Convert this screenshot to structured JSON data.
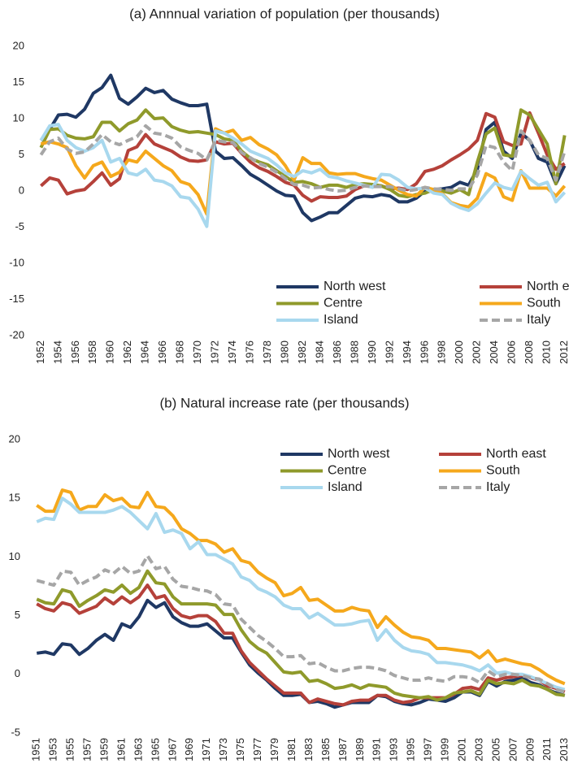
{
  "chart_data": [
    {
      "type": "line",
      "title": "(a) Annnual variation of population (per thousands)",
      "x": [
        1952,
        1953,
        1954,
        1955,
        1956,
        1957,
        1958,
        1959,
        1960,
        1961,
        1962,
        1963,
        1964,
        1965,
        1966,
        1967,
        1968,
        1969,
        1970,
        1971,
        1972,
        1973,
        1974,
        1975,
        1976,
        1977,
        1978,
        1979,
        1980,
        1981,
        1982,
        1983,
        1984,
        1985,
        1986,
        1987,
        1988,
        1989,
        1990,
        1991,
        1992,
        1993,
        1994,
        1995,
        1996,
        1997,
        1998,
        1999,
        2000,
        2001,
        2002,
        2003,
        2004,
        2005,
        2006,
        2007,
        2008,
        2009,
        2010,
        2011,
        2012
      ],
      "xlim": [
        1951.5,
        2012.5
      ],
      "xticks": [
        1952,
        1954,
        1956,
        1958,
        1960,
        1962,
        1964,
        1966,
        1968,
        1970,
        1972,
        1974,
        1976,
        1978,
        1980,
        1982,
        1984,
        1986,
        1988,
        1990,
        1992,
        1994,
        1996,
        1998,
        2000,
        2002,
        2004,
        2006,
        2008,
        2010,
        2012
      ],
      "ylim": [
        -20,
        20
      ],
      "yticks": [
        -20,
        -15,
        -10,
        -5,
        0,
        5,
        10,
        15,
        20
      ],
      "grid": false,
      "legend": "bottom-right",
      "series": [
        {
          "name": "North west",
          "color": "#1f3864",
          "line_style": "solid",
          "values": [
            7,
            8.5,
            10.5,
            10.6,
            10.2,
            11.3,
            13.5,
            14.3,
            16,
            12.8,
            12,
            13,
            14.2,
            13.6,
            13.9,
            12.7,
            12.2,
            11.8,
            11.8,
            12,
            5.5,
            4.5,
            4.6,
            3.5,
            2.3,
            1.6,
            0.8,
            0,
            -0.6,
            -0.7,
            -3,
            -4.1,
            -3.6,
            -3,
            -3,
            -2,
            -1,
            -0.7,
            -0.8,
            -0.5,
            -0.7,
            -1.5,
            -1.5,
            -1,
            0,
            0.2,
            0.3,
            0.5,
            1.2,
            0.8,
            3,
            8.5,
            9.5,
            5.5,
            4.5,
            8,
            7,
            4.5,
            4,
            1,
            3.5
          ]
        },
        {
          "name": "North east",
          "color": "#b5413a",
          "line_style": "solid",
          "values": [
            0.7,
            1.8,
            1.5,
            -0.4,
            0,
            0.2,
            1.3,
            2.5,
            0.8,
            1.7,
            5.6,
            6.1,
            7.8,
            6.5,
            6,
            5.5,
            4.7,
            4.2,
            4.1,
            4.3,
            6.8,
            6.5,
            6.6,
            5.2,
            4,
            3.2,
            2.7,
            2,
            1.2,
            0.8,
            -0.6,
            -1.4,
            -0.8,
            -0.9,
            -0.9,
            -0.7,
            0.2,
            0.7,
            0.8,
            0.7,
            0.3,
            0.4,
            0.2,
            1,
            2.7,
            3,
            3.5,
            4.3,
            5,
            5.8,
            7,
            10.7,
            10.2,
            6.8,
            6.3,
            6.5,
            10.8,
            8,
            5,
            3,
            3.8
          ]
        },
        {
          "name": "Centre",
          "color": "#8f9a2b",
          "line_style": "solid",
          "values": [
            6,
            8.5,
            8.6,
            7.7,
            7.3,
            7.2,
            7.5,
            9.5,
            9.5,
            8.3,
            9.3,
            9.8,
            11.2,
            10,
            10.1,
            8.9,
            8.4,
            8.1,
            8.2,
            8,
            7.8,
            7.2,
            7,
            5.5,
            4.5,
            4,
            3.6,
            2.8,
            2,
            1.2,
            1.3,
            1,
            0.5,
            0.8,
            0.8,
            0.5,
            0.9,
            1,
            0.9,
            0.7,
            0.2,
            -0.6,
            -0.8,
            -0.5,
            -0.3,
            0.2,
            0,
            -0.3,
            0.2,
            -0.5,
            4,
            7.9,
            8.7,
            5,
            4.8,
            11.2,
            10.5,
            8.5,
            6.5,
            1,
            7.7
          ]
        },
        {
          "name": "South",
          "color": "#f5a81c",
          "line_style": "solid",
          "values": [
            6.5,
            6.8,
            6.5,
            6,
            3.5,
            1.8,
            3.5,
            4,
            2,
            2.6,
            4.3,
            4,
            5.5,
            4.5,
            3.5,
            2.8,
            1.3,
            0.9,
            -0.5,
            -3.2,
            8.6,
            8,
            8.4,
            7,
            7.4,
            6.4,
            5.8,
            5,
            3.5,
            1.5,
            4.6,
            3.8,
            3.8,
            2.5,
            2.3,
            2.4,
            2.4,
            2,
            1.7,
            1.5,
            0.8,
            0.1,
            -0.5,
            -0.7,
            0.5,
            0.2,
            -0.4,
            -1.6,
            -2,
            -2.2,
            -1,
            2.4,
            1.8,
            -0.8,
            -1.3,
            2.8,
            0.4,
            0.4,
            0.4,
            -0.7,
            0.7
          ]
        },
        {
          "name": "Island",
          "color": "#a8d8ee",
          "line_style": "solid",
          "values": [
            7,
            9,
            9.2,
            7,
            6,
            5.5,
            6,
            7,
            4,
            4.5,
            2.5,
            2.2,
            3,
            1.5,
            1.3,
            0.7,
            -0.8,
            -1,
            -2.5,
            -4.9,
            8.3,
            8,
            7.3,
            6.5,
            5.5,
            5,
            4.5,
            3.6,
            2.5,
            2,
            2.8,
            2.5,
            3,
            2,
            1.8,
            1.4,
            1.1,
            0.8,
            0.5,
            2.3,
            2.2,
            1.5,
            0.5,
            0.3,
            0.4,
            -0.3,
            -0.5,
            -1.7,
            -2.3,
            -2.7,
            -1.8,
            -0.3,
            1.1,
            0.5,
            0.2,
            2.7,
            1.7,
            0.8,
            1.2,
            -1.5,
            -0.2
          ]
        },
        {
          "name": "Italy",
          "color": "#a6a6a6",
          "line_style": "dashed",
          "values": [
            5,
            6.8,
            7.3,
            5.8,
            5.2,
            5.4,
            6.5,
            7.8,
            6.8,
            6.4,
            7,
            7.5,
            9,
            8,
            7.8,
            7.3,
            6.1,
            5.6,
            5.2,
            4.3,
            7,
            6.8,
            6.7,
            5.3,
            4.6,
            3.8,
            3.3,
            2.6,
            1.7,
            0.9,
            0.8,
            0.4,
            0.5,
            0.2,
            0,
            0.1,
            0.5,
            0.7,
            0.6,
            0.6,
            0.6,
            0.3,
            0,
            0.2,
            0.5,
            0.3,
            0.2,
            0.1,
            0.3,
            0.3,
            2.2,
            6.3,
            6,
            4,
            2.8,
            8.3,
            7,
            5,
            4.5,
            1.5,
            5.5
          ]
        }
      ]
    },
    {
      "type": "line",
      "title": "(b) Natural increase rate (per thousands)",
      "x": [
        1951,
        1952,
        1953,
        1954,
        1955,
        1956,
        1957,
        1958,
        1959,
        1960,
        1961,
        1962,
        1963,
        1964,
        1965,
        1966,
        1967,
        1968,
        1969,
        1970,
        1971,
        1972,
        1973,
        1974,
        1975,
        1976,
        1977,
        1978,
        1979,
        1980,
        1981,
        1982,
        1983,
        1984,
        1985,
        1986,
        1987,
        1988,
        1989,
        1990,
        1991,
        1992,
        1993,
        1994,
        1995,
        1996,
        1997,
        1998,
        1999,
        2000,
        2001,
        2002,
        2003,
        2004,
        2005,
        2006,
        2007,
        2008,
        2009,
        2010,
        2011,
        2012,
        2013
      ],
      "xlim": [
        1950.5,
        2013.5
      ],
      "xticks": [
        1951,
        1953,
        1955,
        1957,
        1959,
        1961,
        1963,
        1965,
        1967,
        1969,
        1971,
        1973,
        1975,
        1977,
        1979,
        1981,
        1983,
        1985,
        1987,
        1989,
        1991,
        1993,
        1995,
        1997,
        1999,
        2001,
        2003,
        2005,
        2007,
        2009,
        2011,
        2013
      ],
      "ylim": [
        -5,
        20
      ],
      "yticks": [
        -5,
        0,
        5,
        10,
        15,
        20
      ],
      "grid": false,
      "legend": "top-right",
      "series": [
        {
          "name": "North west",
          "color": "#1f3864",
          "line_style": "solid",
          "values": [
            1.8,
            1.9,
            1.7,
            2.6,
            2.5,
            1.7,
            2.2,
            2.9,
            3.4,
            2.9,
            4.3,
            4,
            4.9,
            6.3,
            5.7,
            6.1,
            4.9,
            4.4,
            4.1,
            4.1,
            4.3,
            3.7,
            3.1,
            3.1,
            1.9,
            0.8,
            0.1,
            -0.5,
            -1.2,
            -1.8,
            -1.8,
            -1.7,
            -2.4,
            -2.3,
            -2.5,
            -2.8,
            -2.6,
            -2.4,
            -2.4,
            -2.4,
            -1.8,
            -1.9,
            -2.3,
            -2.5,
            -2.6,
            -2.4,
            -2.1,
            -2.2,
            -2.3,
            -2,
            -1.5,
            -1.5,
            -1.8,
            -0.6,
            -1,
            -0.6,
            -0.5,
            -0.3,
            -0.7,
            -0.9,
            -1.3,
            -1.6,
            -1.8
          ]
        },
        {
          "name": "North east",
          "color": "#b5413a",
          "line_style": "solid",
          "values": [
            6,
            5.6,
            5.4,
            6.1,
            5.9,
            5.2,
            5.5,
            5.8,
            6.5,
            6,
            6.6,
            6.1,
            6.6,
            7.6,
            6.5,
            6.7,
            5.6,
            5,
            4.8,
            5,
            5,
            4.5,
            3.5,
            3.5,
            2,
            1,
            0.3,
            -0.4,
            -1,
            -1.6,
            -1.6,
            -1.6,
            -2.4,
            -2.1,
            -2.3,
            -2.5,
            -2.6,
            -2.3,
            -2.2,
            -2.2,
            -1.8,
            -1.8,
            -2.2,
            -2.4,
            -2.3,
            -2,
            -2,
            -2,
            -2,
            -1.7,
            -1.2,
            -1.1,
            -1.3,
            -0.3,
            -0.5,
            -0.3,
            -0.2,
            -0.1,
            -0.3,
            -0.5,
            -1,
            -1.2,
            -1.5
          ]
        },
        {
          "name": "Centre",
          "color": "#8f9a2b",
          "line_style": "solid",
          "values": [
            6.4,
            6.1,
            6,
            7.2,
            7,
            5.8,
            6.3,
            6.7,
            7.2,
            7,
            7.6,
            6.9,
            7.4,
            8.8,
            7.8,
            7.7,
            6.6,
            6,
            6,
            6,
            6,
            5.9,
            5.1,
            5.1,
            3.8,
            2.8,
            2.2,
            1.8,
            1,
            0.2,
            0.1,
            0.2,
            -0.6,
            -0.5,
            -0.8,
            -1.2,
            -1.1,
            -0.9,
            -1.2,
            -0.9,
            -1,
            -1.1,
            -1.6,
            -1.8,
            -1.9,
            -2,
            -1.9,
            -2.2,
            -2,
            -1.6,
            -1.5,
            -1.4,
            -1.7,
            -0.5,
            -0.8,
            -0.7,
            -0.8,
            -0.5,
            -0.9,
            -1,
            -1.3,
            -1.7,
            -1.8
          ]
        },
        {
          "name": "South",
          "color": "#f5a81c",
          "line_style": "solid",
          "values": [
            14.4,
            13.9,
            13.9,
            15.7,
            15.5,
            14,
            14.3,
            14.3,
            15.3,
            14.8,
            15,
            14.3,
            14.2,
            15.5,
            14.3,
            14.2,
            13.5,
            12.4,
            12,
            11.4,
            11.4,
            11.1,
            10.4,
            10.7,
            9.7,
            9.5,
            8.7,
            8.2,
            7.8,
            6.7,
            6.9,
            7.4,
            6.3,
            6.4,
            5.9,
            5.4,
            5.4,
            5.7,
            5.5,
            5.4,
            4,
            4.9,
            4.2,
            3.6,
            3.2,
            3.1,
            2.9,
            2.2,
            2.2,
            2.1,
            2,
            1.9,
            1.4,
            2,
            1.1,
            1.3,
            1.1,
            0.9,
            0.8,
            0.4,
            -0.1,
            -0.5,
            -0.8
          ]
        },
        {
          "name": "Island",
          "color": "#a8d8ee",
          "line_style": "solid",
          "values": [
            13,
            13.3,
            13.2,
            15,
            14.5,
            13.8,
            13.8,
            13.8,
            13.8,
            14,
            14.3,
            13.8,
            13.1,
            12.4,
            13.7,
            12.1,
            12.3,
            12,
            10.7,
            11.3,
            10.2,
            10.2,
            9.8,
            9.4,
            8.3,
            8,
            7.3,
            7,
            6.6,
            5.9,
            5.6,
            5.6,
            4.8,
            5.2,
            4.7,
            4.2,
            4.2,
            4.3,
            4.5,
            4.6,
            2.9,
            3.8,
            2.9,
            2.3,
            2,
            1.9,
            1.7,
            1,
            1,
            0.9,
            0.8,
            0.6,
            0.3,
            0.8,
            0.1,
            0.2,
            0,
            0,
            -0.2,
            -0.5,
            -0.8,
            -1.1,
            -1.3
          ]
        },
        {
          "name": "Italy",
          "color": "#a6a6a6",
          "line_style": "dashed",
          "values": [
            8,
            7.8,
            7.6,
            8.8,
            8.7,
            7.6,
            8,
            8.3,
            8.9,
            8.6,
            9.2,
            8.6,
            8.8,
            10.1,
            9,
            9.2,
            8.1,
            7.5,
            7.4,
            7.2,
            7.1,
            6.8,
            6,
            5.9,
            4.7,
            4,
            3.3,
            2.8,
            2.2,
            1.5,
            1.5,
            1.6,
            0.9,
            1,
            0.6,
            0.3,
            0.3,
            0.5,
            0.6,
            0.6,
            0.5,
            0.3,
            -0.1,
            -0.3,
            -0.5,
            -0.5,
            -0.3,
            -0.5,
            -0.6,
            -0.2,
            -0.2,
            -0.3,
            -0.7,
            0.3,
            -0.2,
            0,
            0,
            -0.1,
            -0.3,
            -0.4,
            -0.8,
            -1.3,
            -1.5
          ]
        }
      ]
    }
  ]
}
